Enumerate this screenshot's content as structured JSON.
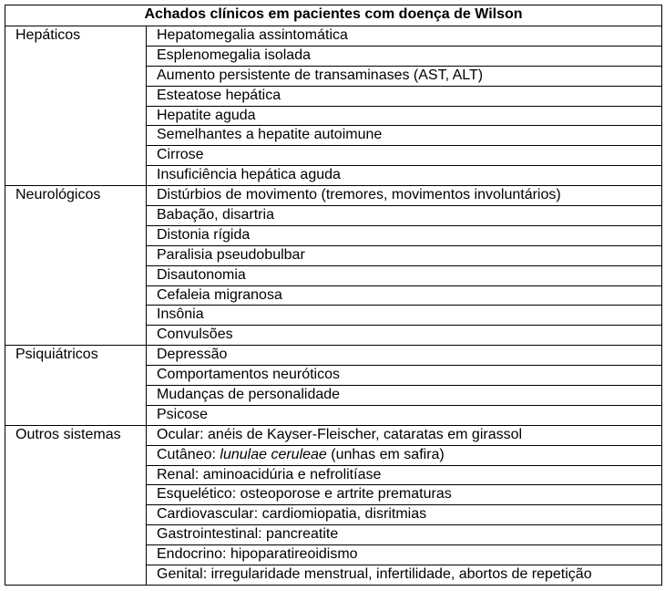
{
  "title": "Achados clínicos em pacientes com doença de Wilson",
  "groups": [
    {
      "category": "Hepáticos",
      "items": [
        "Hepatomegalia assintomática",
        "Esplenomegalia isolada",
        "Aumento persistente de transaminases (AST, ALT)",
        "Esteatose hepática",
        "Hepatite aguda",
        "Semelhantes a hepatite autoimune",
        "Cirrose",
        "Insuficiência hepática aguda"
      ]
    },
    {
      "category": "Neurológicos",
      "items": [
        "Distúrbios de movimento (tremores, movimentos involuntários)",
        "Babação, disartria",
        "Distonia rígida",
        "Paralisia pseudobulbar",
        "Disautonomia",
        "Cefaleia migranosa",
        "Insônia",
        "Convulsões"
      ]
    },
    {
      "category": "Psiquiátricos",
      "items": [
        "Depressão",
        "Comportamentos neuróticos",
        "Mudanças de personalidade",
        "Psicose"
      ]
    },
    {
      "category": "Outros sistemas",
      "items": [
        "Ocular: anéis de Kayser-Fleischer, cataratas em girassol",
        "Cutâneo: |lunulae ceruleae| (unhas em safira)",
        "Renal: aminoacidúria e nefrolitíase",
        "Esquelético: osteoporose e artrite prematuras",
        "Cardiovascular: cardiomiopatia, disritmias",
        "Gastrointestinal: pancreatite",
        "Endocrino: hipoparatireoidismo",
        "Genital: irregularidade menstrual, infertilidade, abortos de repetição"
      ]
    }
  ]
}
